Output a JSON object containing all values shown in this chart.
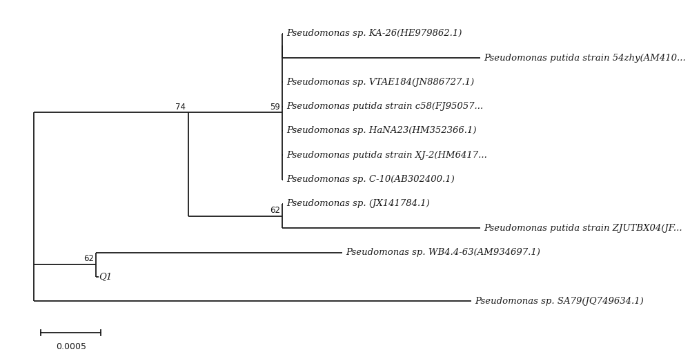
{
  "fig_width": 10.0,
  "fig_height": 5.14,
  "background_color": "#ffffff",
  "taxa": [
    "Pseudomonas sp. KA-26(HE979862.1)",
    "Pseudomonas putida strain 54zhy(AM410...",
    "Pseudomonas sp. VTAE184(JN886727.1)",
    "Pseudomonas putida strain c58(FJ95057...",
    "Pseudomonas sp. HaNA23(HM352366.1)",
    "Pseudomonas putida strain XJ-2(HM6417...",
    "Pseudomonas sp. C-10(AB302400.1)",
    "Pseudomonas sp. (JX141784.1)",
    "Pseudomonas putida strain ZJUTBX04(JF...",
    "Pseudomonas sp. WB4.4-63(AM934697.1)",
    "Q1",
    "Pseudomonas sp. SA79(JQ749634.1)"
  ],
  "scale_bar_value": "0.0005",
  "line_color": "#1a1a1a",
  "text_color": "#1a1a1a",
  "font_size": 9.5,
  "bootstrap_fontsize": 8.5
}
